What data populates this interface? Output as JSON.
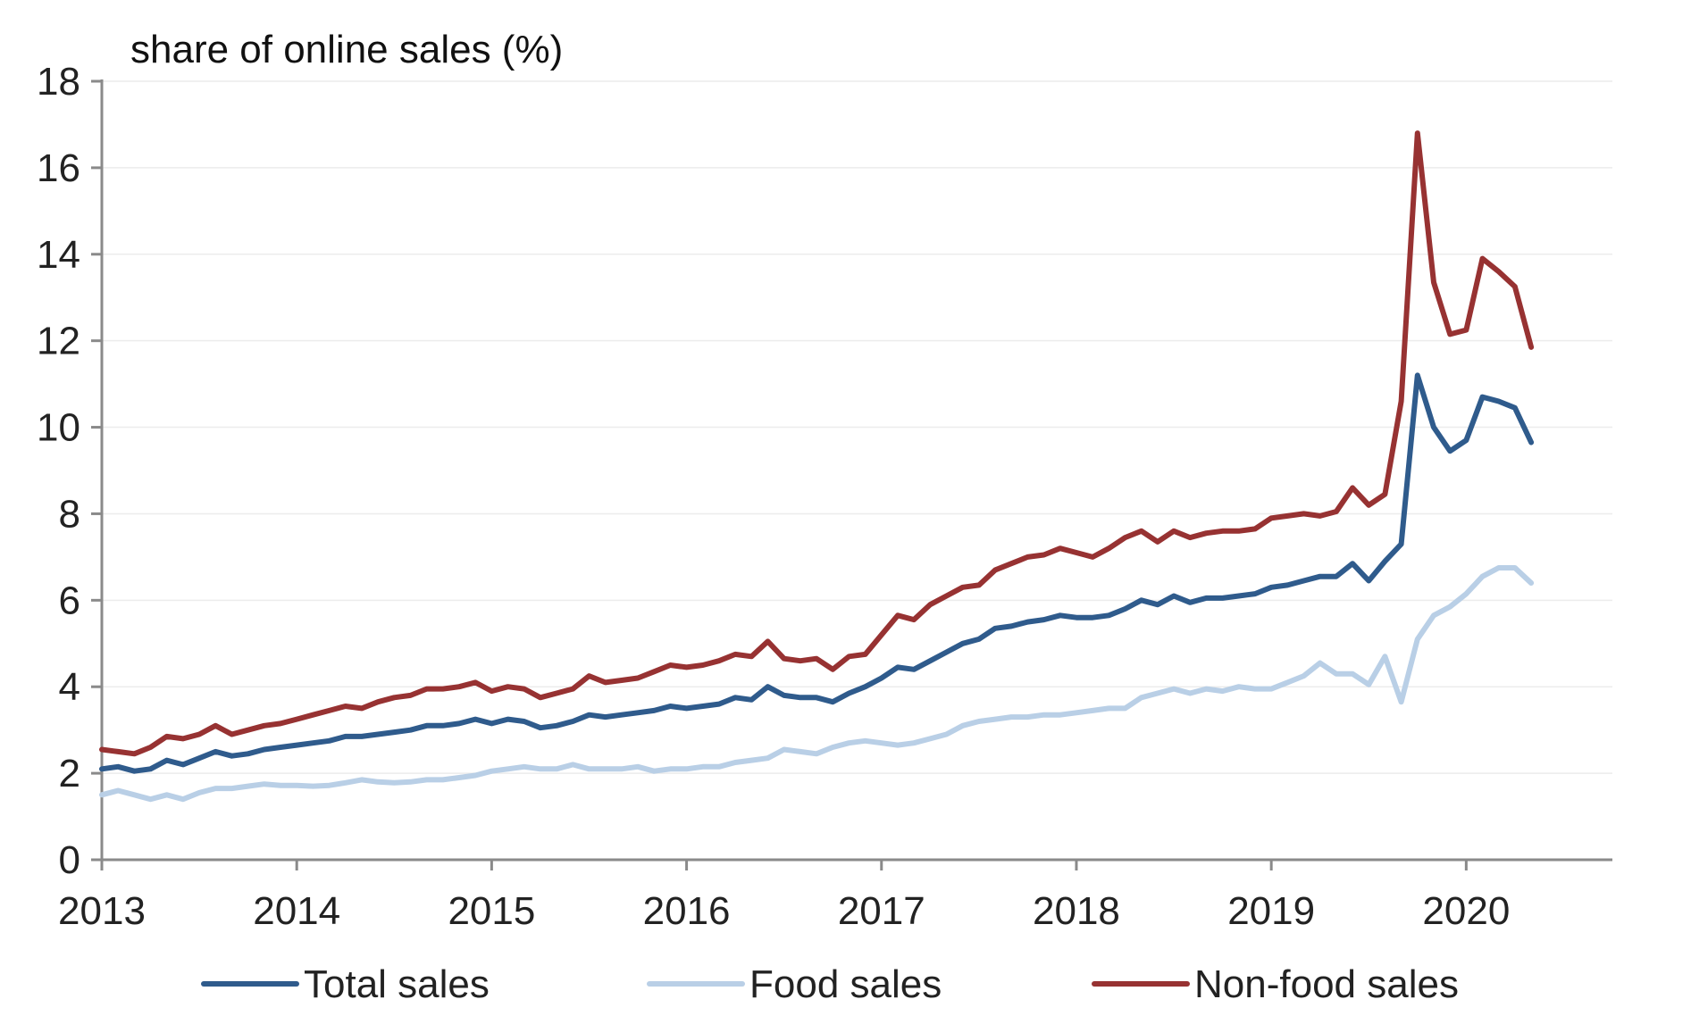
{
  "chart_data": {
    "type": "line",
    "title": "",
    "ylabel": "share of online sales (%)",
    "xlabel": "",
    "ylim": [
      0,
      18
    ],
    "yticks": [
      0,
      2,
      4,
      6,
      8,
      10,
      12,
      14,
      16,
      18
    ],
    "xlim": [
      2013.0,
      2020.75
    ],
    "xticks": [
      "2013",
      "2014",
      "2015",
      "2016",
      "2017",
      "2018",
      "2019",
      "2020"
    ],
    "grid": "horizontal",
    "legend_position": "bottom",
    "x_step_months": 1,
    "x_start": "2013-01",
    "series": [
      {
        "name": "Total sales",
        "color": "#2f5b8c",
        "values": [
          2.1,
          2.15,
          2.05,
          2.1,
          2.3,
          2.2,
          2.35,
          2.5,
          2.4,
          2.45,
          2.55,
          2.6,
          2.65,
          2.7,
          2.75,
          2.85,
          2.85,
          2.9,
          2.95,
          3.0,
          3.1,
          3.1,
          3.15,
          3.25,
          3.15,
          3.25,
          3.2,
          3.05,
          3.1,
          3.2,
          3.35,
          3.3,
          3.35,
          3.4,
          3.45,
          3.55,
          3.5,
          3.55,
          3.6,
          3.75,
          3.7,
          4.0,
          3.8,
          3.75,
          3.75,
          3.65,
          3.85,
          4.0,
          4.2,
          4.45,
          4.4,
          4.6,
          4.8,
          5.0,
          5.1,
          5.35,
          5.4,
          5.5,
          5.55,
          5.65,
          5.6,
          5.6,
          5.65,
          5.8,
          6.0,
          5.9,
          6.1,
          5.95,
          6.05,
          6.05,
          6.1,
          6.15,
          6.3,
          6.35,
          6.45,
          6.55,
          6.55,
          6.85,
          6.45,
          6.9,
          7.3,
          11.2,
          10.0,
          9.45,
          9.7,
          10.7,
          10.6,
          10.45,
          9.65
        ]
      },
      {
        "name": "Food sales",
        "color": "#b9cfe6",
        "values": [
          1.5,
          1.6,
          1.5,
          1.4,
          1.5,
          1.4,
          1.55,
          1.65,
          1.65,
          1.7,
          1.75,
          1.72,
          1.72,
          1.7,
          1.72,
          1.78,
          1.85,
          1.8,
          1.78,
          1.8,
          1.85,
          1.85,
          1.9,
          1.95,
          2.05,
          2.1,
          2.15,
          2.1,
          2.1,
          2.2,
          2.1,
          2.1,
          2.1,
          2.15,
          2.05,
          2.1,
          2.1,
          2.15,
          2.15,
          2.25,
          2.3,
          2.35,
          2.55,
          2.5,
          2.45,
          2.6,
          2.7,
          2.75,
          2.7,
          2.65,
          2.7,
          2.8,
          2.9,
          3.1,
          3.2,
          3.25,
          3.3,
          3.3,
          3.35,
          3.35,
          3.4,
          3.45,
          3.5,
          3.5,
          3.75,
          3.85,
          3.95,
          3.85,
          3.95,
          3.9,
          4.0,
          3.95,
          3.95,
          4.1,
          4.25,
          4.55,
          4.3,
          4.3,
          4.05,
          4.7,
          3.65,
          5.1,
          5.65,
          5.85,
          6.15,
          6.55,
          6.75,
          6.75,
          6.4
        ]
      },
      {
        "name": "Non-food sales",
        "color": "#973232",
        "values": [
          2.55,
          2.5,
          2.45,
          2.6,
          2.85,
          2.8,
          2.9,
          3.1,
          2.9,
          3.0,
          3.1,
          3.15,
          3.25,
          3.35,
          3.45,
          3.55,
          3.5,
          3.65,
          3.75,
          3.8,
          3.95,
          3.95,
          4.0,
          4.1,
          3.9,
          4.0,
          3.95,
          3.75,
          3.85,
          3.95,
          4.25,
          4.1,
          4.15,
          4.2,
          4.35,
          4.5,
          4.45,
          4.5,
          4.6,
          4.75,
          4.7,
          5.05,
          4.65,
          4.6,
          4.65,
          4.4,
          4.7,
          4.75,
          5.2,
          5.65,
          5.55,
          5.9,
          6.1,
          6.3,
          6.35,
          6.7,
          6.85,
          7.0,
          7.05,
          7.2,
          7.1,
          7.0,
          7.2,
          7.45,
          7.6,
          7.35,
          7.6,
          7.45,
          7.55,
          7.6,
          7.6,
          7.65,
          7.9,
          7.95,
          8.0,
          7.95,
          8.05,
          8.6,
          8.2,
          8.45,
          10.6,
          16.8,
          13.35,
          12.15,
          12.25,
          13.9,
          13.6,
          13.25,
          11.85
        ]
      }
    ]
  }
}
